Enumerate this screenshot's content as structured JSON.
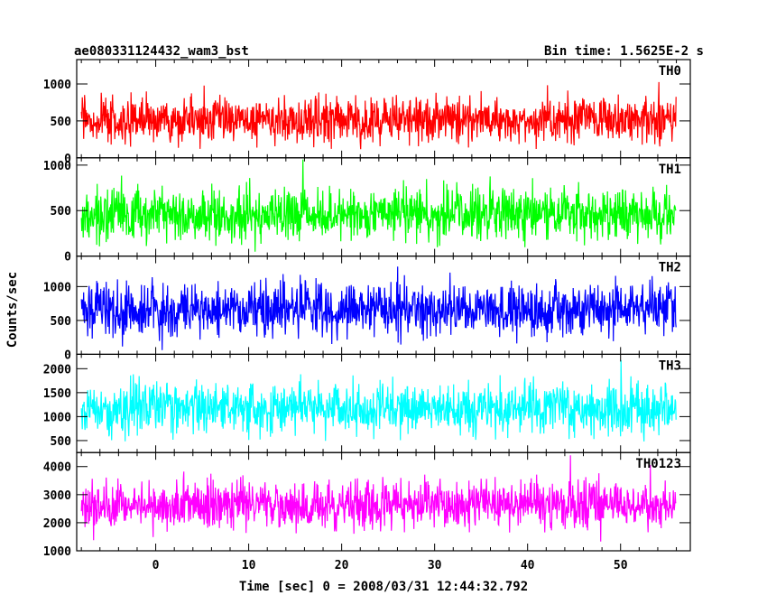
{
  "header": {
    "title": "ae080331124432_wam3_bst",
    "bin_time": "Bin time: 1.5625E-2 s"
  },
  "chart_data": {
    "type": "line",
    "xlabel": "Time [sec] 0 = 2008/03/31 12:44:32.792",
    "ylabel": "Counts/sec",
    "xlim": [
      -8.5,
      57.5
    ],
    "x_range_data": [
      -8,
      56
    ],
    "x_ticks": [
      0,
      10,
      20,
      30,
      40,
      50
    ],
    "grid": false,
    "panels": [
      {
        "name": "TH0",
        "color": "#ff0000",
        "ylim": [
          0,
          1330
        ],
        "y_ticks": [
          0,
          500,
          1000
        ],
        "y_tick_labels": [
          "0",
          "500",
          "1000"
        ],
        "mean": 510,
        "spread": 150,
        "min": 10,
        "max": 1330
      },
      {
        "name": "TH1",
        "color": "#00ff00",
        "ylim": [
          0,
          1080
        ],
        "y_ticks": [
          0,
          500,
          1000
        ],
        "y_tick_labels": [
          "0",
          "500",
          "1000"
        ],
        "mean": 450,
        "spread": 140,
        "min": 10,
        "max": 1080
      },
      {
        "name": "TH2",
        "color": "#0000ff",
        "ylim": [
          0,
          1450
        ],
        "y_ticks": [
          0,
          500,
          1000
        ],
        "y_tick_labels": [
          "0",
          "500",
          "1000"
        ],
        "mean": 660,
        "spread": 190,
        "min": 30,
        "max": 1450
      },
      {
        "name": "TH3",
        "color": "#00ffff",
        "ylim": [
          250,
          2300
        ],
        "y_ticks": [
          500,
          1000,
          1500,
          2000
        ],
        "y_tick_labels": [
          "500",
          "1000",
          "1500",
          "2000"
        ],
        "mean": 1160,
        "spread": 260,
        "min": 330,
        "max": 2300
      },
      {
        "name": "TH0123",
        "color": "#ff00ff",
        "ylim": [
          1000,
          4500
        ],
        "y_ticks": [
          1000,
          2000,
          3000,
          4000
        ],
        "y_tick_labels": [
          "1000",
          "2000",
          "3000",
          "4000"
        ],
        "mean": 2590,
        "spread": 420,
        "min": 1050,
        "max": 4500
      }
    ]
  }
}
